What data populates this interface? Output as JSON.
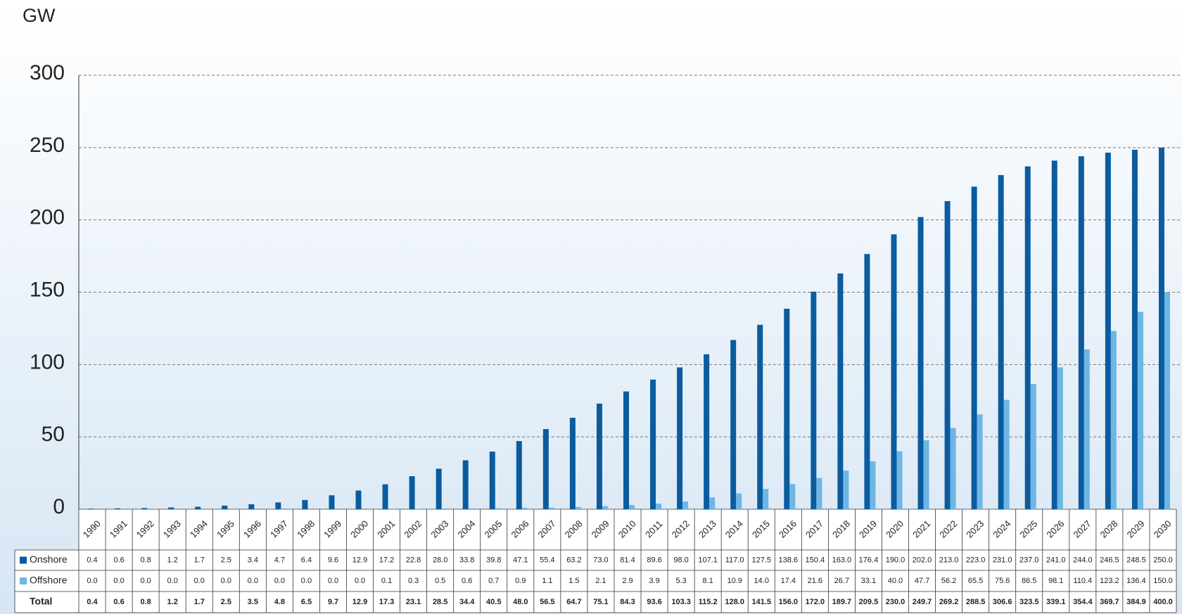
{
  "chart_data": {
    "type": "bar",
    "y_axis_label": "GW",
    "categories": [
      "1990",
      "1991",
      "1992",
      "1993",
      "1994",
      "1995",
      "1996",
      "1997",
      "1998",
      "1999",
      "2000",
      "2001",
      "2002",
      "2003",
      "2004",
      "2005",
      "2006",
      "2007",
      "2008",
      "2009",
      "2010",
      "2011",
      "2012",
      "2013",
      "2014",
      "2015",
      "2016",
      "2017",
      "2018",
      "2019",
      "2020",
      "2021",
      "2022",
      "2023",
      "2024",
      "2025",
      "2026",
      "2027",
      "2028",
      "2029",
      "2030"
    ],
    "series": [
      {
        "name": "Onshore",
        "color": "#0b5c9e",
        "values": [
          0.4,
          0.6,
          0.8,
          1.2,
          1.7,
          2.5,
          3.4,
          4.7,
          6.4,
          9.6,
          12.9,
          17.2,
          22.8,
          28.0,
          33.8,
          39.8,
          47.1,
          55.4,
          63.2,
          73.0,
          81.4,
          89.6,
          98.0,
          107.1,
          117.0,
          127.5,
          138.6,
          150.4,
          163.0,
          176.4,
          190.0,
          202.0,
          213.0,
          223.0,
          231.0,
          237.0,
          241.0,
          244.0,
          246.5,
          248.5,
          250.0
        ],
        "value_labels": [
          "0.4",
          "0.6",
          "0.8",
          "1.2",
          "1.7",
          "2.5",
          "3.4",
          "4.7",
          "6.4",
          "9.6",
          "12.9",
          "17.2",
          "22.8",
          "28.0",
          "33.8",
          "39.8",
          "47.1",
          "55.4",
          "63.2",
          "73.0",
          "81.4",
          "89.6",
          "98.0",
          "107.1",
          "117.0",
          "127.5",
          "138.6",
          "150.4",
          "163.0",
          "176.4",
          "190.0",
          "202.0",
          "213.0",
          "223.0",
          "231.0",
          "237.0",
          "241.0",
          "244.0",
          "246.5",
          "248.5",
          "250.0"
        ]
      },
      {
        "name": "Offshore",
        "color": "#6db6e6",
        "values": [
          0.0,
          0.0,
          0.0,
          0.0,
          0.0,
          0.0,
          0.0,
          0.0,
          0.0,
          0.0,
          0.0,
          0.1,
          0.3,
          0.5,
          0.6,
          0.7,
          0.9,
          1.1,
          1.5,
          2.1,
          2.9,
          3.9,
          5.3,
          8.1,
          10.9,
          14.0,
          17.4,
          21.6,
          26.7,
          33.1,
          40.0,
          47.7,
          56.2,
          65.5,
          75.6,
          86.5,
          98.1,
          110.4,
          123.2,
          136.4,
          150.0
        ],
        "value_labels": [
          "0.0",
          "0.0",
          "0.0",
          "0.0",
          "0.0",
          "0.0",
          "0.0",
          "0.0",
          "0.0",
          "0.0",
          "0.0",
          "0.1",
          "0.3",
          "0.5",
          "0.6",
          "0.7",
          "0.9",
          "1.1",
          "1.5",
          "2.1",
          "2.9",
          "3.9",
          "5.3",
          "8.1",
          "10.9",
          "14.0",
          "17.4",
          "21.6",
          "26.7",
          "33.1",
          "40.0",
          "47.7",
          "56.2",
          "65.5",
          "75.6",
          "86.5",
          "98.1",
          "110.4",
          "123.2",
          "136.4",
          "150.0"
        ]
      }
    ],
    "total": {
      "name": "Total",
      "values": [
        0.4,
        0.6,
        0.8,
        1.2,
        1.7,
        2.5,
        3.5,
        4.8,
        6.5,
        9.7,
        12.9,
        17.3,
        23.1,
        28.5,
        34.4,
        40.5,
        48.0,
        56.5,
        64.7,
        75.1,
        84.3,
        93.6,
        103.3,
        115.2,
        128.0,
        141.5,
        156.0,
        172.0,
        189.7,
        209.5,
        230.0,
        249.7,
        269.2,
        288.5,
        306.6,
        323.5,
        339.1,
        354.4,
        369.7,
        384.9,
        400.0
      ],
      "value_labels": [
        "0.4",
        "0.6",
        "0.8",
        "1.2",
        "1.7",
        "2.5",
        "3.5",
        "4.8",
        "6.5",
        "9.7",
        "12.9",
        "17.3",
        "23.1",
        "28.5",
        "34.4",
        "40.5",
        "48.0",
        "56.5",
        "64.7",
        "75.1",
        "84.3",
        "93.6",
        "103.3",
        "115.2",
        "128.0",
        "141.5",
        "156.0",
        "172.0",
        "189.7",
        "209.5",
        "230.0",
        "249.7",
        "269.2",
        "288.5",
        "306.6",
        "323.5",
        "339.1",
        "354.4",
        "369.7",
        "384.9",
        "400.0"
      ]
    },
    "ylim": [
      0,
      300
    ],
    "yticks": [
      0,
      50,
      100,
      150,
      200,
      250,
      300
    ],
    "grid": true
  }
}
